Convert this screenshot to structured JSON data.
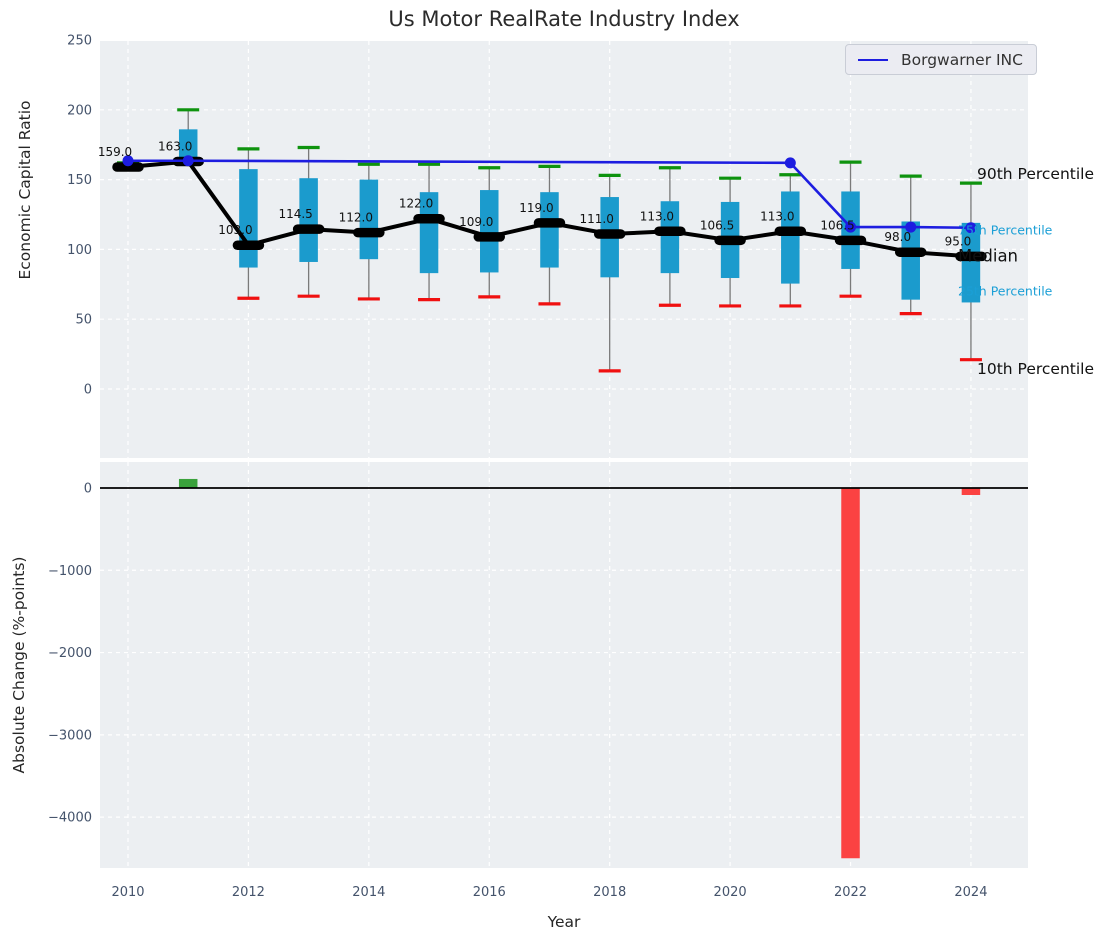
{
  "title": "Us Motor RealRate Industry Index",
  "legend": {
    "label": "Borgwarner INC"
  },
  "right_labels": {
    "p90": "90th Percentile",
    "p75": "75th Percentile",
    "median": "Median",
    "p25": "25th Percentile",
    "p10": "10th Percentile"
  },
  "colors": {
    "plot_bg": "#eceff2",
    "grid": "#ffffff",
    "box": "#1b9bcd",
    "whisker": "#7a7a7a",
    "cap_high": "#0e930e",
    "cap_low": "#f01010",
    "median": "#000000",
    "series": "#1d1de0",
    "bar_up": "#3aa23c",
    "bar_down": "#fb4242",
    "tick_text": "#44536b",
    "label_text": "#111111",
    "cyan_text": "#1b9fd6",
    "zero_line": "#000000"
  },
  "chart_data": [
    {
      "type": "boxplot+line",
      "title": "Us Motor RealRate Industry Index",
      "ylabel": "Economic Capital Ratio",
      "ylim": [
        -50,
        250
      ],
      "grid": true,
      "legend_position": "upper right",
      "yticks": [
        {
          "v": 250,
          "label": "250"
        },
        {
          "v": 200,
          "label": "200"
        },
        {
          "v": 150,
          "label": "150"
        },
        {
          "v": 100,
          "label": "100"
        },
        {
          "v": 50,
          "label": "50"
        },
        {
          "v": 0,
          "label": "0"
        }
      ],
      "xticks": [
        {
          "v": 2010,
          "label": "2010"
        },
        {
          "v": 2012,
          "label": "2012"
        },
        {
          "v": 2014,
          "label": "2014"
        },
        {
          "v": 2016,
          "label": "2016"
        },
        {
          "v": 2018,
          "label": "2018"
        },
        {
          "v": 2020,
          "label": "2020"
        },
        {
          "v": 2022,
          "label": "2022"
        },
        {
          "v": 2024,
          "label": "2024"
        }
      ],
      "boxes": [
        {
          "year": 2010,
          "label": "159.0",
          "median": 159.0,
          "q1": 157.5,
          "q3": 160.5,
          "p10": null,
          "p90": 162.0
        },
        {
          "year": 2011,
          "label": "163.0",
          "median": 163.0,
          "q1": 163.0,
          "q3": 186.0,
          "p10": null,
          "p90": 200.0
        },
        {
          "year": 2012,
          "label": "103.0",
          "median": 103.0,
          "q1": 87.0,
          "q3": 157.5,
          "p10": 65.0,
          "p90": 172.0
        },
        {
          "year": 2013,
          "label": "114.5",
          "median": 114.5,
          "q1": 91.0,
          "q3": 151.0,
          "p10": 66.5,
          "p90": 173.0
        },
        {
          "year": 2014,
          "label": "112.0",
          "median": 112.0,
          "q1": 93.0,
          "q3": 150.0,
          "p10": 64.5,
          "p90": 161.0
        },
        {
          "year": 2015,
          "label": "122.0",
          "median": 122.0,
          "q1": 83.0,
          "q3": 141.0,
          "p10": 64.0,
          "p90": 161.0
        },
        {
          "year": 2016,
          "label": "109.0",
          "median": 109.0,
          "q1": 83.5,
          "q3": 142.5,
          "p10": 66.0,
          "p90": 158.5
        },
        {
          "year": 2017,
          "label": "119.0",
          "median": 119.0,
          "q1": 87.0,
          "q3": 141.0,
          "p10": 61.0,
          "p90": 159.5
        },
        {
          "year": 2018,
          "label": "111.0",
          "median": 111.0,
          "q1": 80.0,
          "q3": 137.5,
          "p10": 13.0,
          "p90": 153.0
        },
        {
          "year": 2019,
          "label": "113.0",
          "median": 113.0,
          "q1": 83.0,
          "q3": 134.5,
          "p10": 60.0,
          "p90": 158.5
        },
        {
          "year": 2020,
          "label": "106.5",
          "median": 106.5,
          "q1": 79.5,
          "q3": 134.0,
          "p10": 59.5,
          "p90": 151.0
        },
        {
          "year": 2021,
          "label": "113.0",
          "median": 113.0,
          "q1": 75.5,
          "q3": 141.5,
          "p10": 59.5,
          "p90": 153.5
        },
        {
          "year": 2022,
          "label": "106.5",
          "median": 106.5,
          "q1": 86.0,
          "q3": 141.5,
          "p10": 66.5,
          "p90": 162.5
        },
        {
          "year": 2023,
          "label": "98.0",
          "median": 98.0,
          "q1": 64.0,
          "q3": 120.0,
          "p10": 54.0,
          "p90": 152.5
        },
        {
          "year": 2024,
          "label": "95.0",
          "median": 95.0,
          "q1": 62.0,
          "q3": 119.0,
          "p10": 21.0,
          "p90": 147.5
        }
      ],
      "series": [
        {
          "name": "Borgwarner INC",
          "points": [
            [
              2010,
              163.5
            ],
            [
              2011,
              163.5
            ],
            [
              2021,
              162.0
            ],
            [
              2022,
              116.0
            ],
            [
              2023,
              116.0
            ],
            [
              2024,
              115.5
            ]
          ]
        }
      ]
    },
    {
      "type": "bar",
      "ylabel": "Absolute Change (%-points)",
      "xlabel": "Year",
      "ylim": [
        -4620,
        320
      ],
      "grid": true,
      "yticks": [
        {
          "v": 0,
          "label": "0"
        },
        {
          "v": -1000,
          "label": "−1000"
        },
        {
          "v": -2000,
          "label": "−2000"
        },
        {
          "v": -3000,
          "label": "−3000"
        },
        {
          "v": -4000,
          "label": "−4000"
        }
      ],
      "xticks": [
        {
          "v": 2010,
          "label": "2010"
        },
        {
          "v": 2012,
          "label": "2012"
        },
        {
          "v": 2014,
          "label": "2014"
        },
        {
          "v": 2016,
          "label": "2016"
        },
        {
          "v": 2018,
          "label": "2018"
        },
        {
          "v": 2020,
          "label": "2020"
        },
        {
          "v": 2022,
          "label": "2022"
        },
        {
          "v": 2024,
          "label": "2024"
        }
      ],
      "bars": [
        {
          "year": 2011,
          "value": 110
        },
        {
          "year": 2022,
          "value": -4500
        },
        {
          "year": 2024,
          "value": -85
        }
      ]
    }
  ]
}
